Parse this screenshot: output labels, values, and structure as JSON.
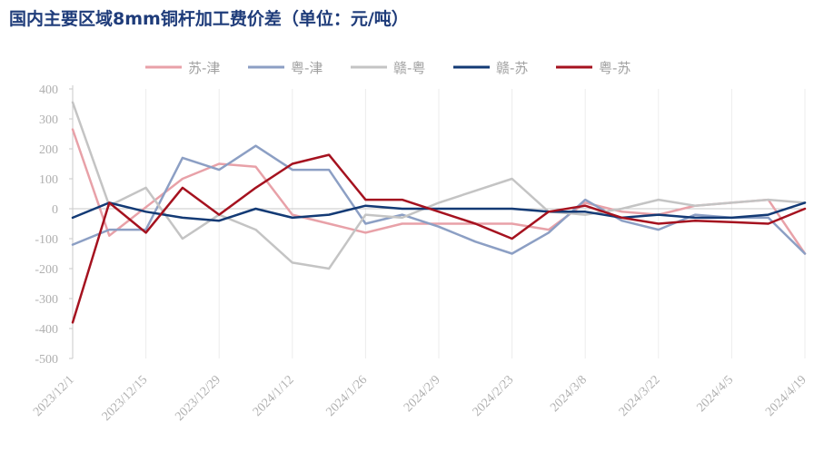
{
  "title": "国内主要区域8mm铜杆加工费价差（单位：元/吨）",
  "chart_data": {
    "type": "line",
    "title": "国内主要区域8mm铜杆加工费价差（单位：元/吨）",
    "xlabel": "",
    "ylabel": "",
    "ylim": [
      -500,
      400
    ],
    "yticks": [
      400,
      300,
      200,
      100,
      0,
      -100,
      -200,
      -300,
      -400,
      -500
    ],
    "grid": true,
    "legend_position": "top",
    "x": [
      "2023/12/1",
      "2023/12/8",
      "2023/12/15",
      "2023/12/22",
      "2023/12/29",
      "2024/1/5",
      "2024/1/12",
      "2024/1/19",
      "2024/1/26",
      "2024/2/2",
      "2024/2/9",
      "2024/2/16",
      "2024/2/23",
      "2024/3/1",
      "2024/3/8",
      "2024/3/15",
      "2024/3/22",
      "2024/3/29",
      "2024/4/5",
      "2024/4/12",
      "2024/4/19"
    ],
    "xtick_labels": [
      "2023/12/1",
      "2023/12/15",
      "2023/12/29",
      "2024/1/12",
      "2024/1/26",
      "2024/2/9",
      "2024/2/23",
      "2024/3/8",
      "2024/3/22",
      "2024/4/5",
      "2024/4/19"
    ],
    "series": [
      {
        "name": "苏-津",
        "color": "#e8a1a8",
        "width": 2.5,
        "values": [
          265,
          -90,
          5,
          100,
          150,
          140,
          -20,
          -50,
          -80,
          -50,
          -50,
          -50,
          -50,
          -70,
          20,
          -10,
          -20,
          10,
          20,
          30,
          -150
        ]
      },
      {
        "name": "粤-津",
        "color": "#8c9fc4",
        "width": 2.5,
        "values": [
          -120,
          -70,
          -70,
          170,
          130,
          210,
          130,
          130,
          -50,
          -20,
          -60,
          -110,
          -150,
          -80,
          30,
          -40,
          -70,
          -20,
          -30,
          -30,
          -150
        ]
      },
      {
        "name": "赣-粤",
        "color": "#c4c4c4",
        "width": 2.5,
        "values": [
          355,
          10,
          70,
          -100,
          -20,
          -70,
          -180,
          -200,
          -20,
          -30,
          20,
          60,
          100,
          -10,
          -20,
          0,
          30,
          10,
          20,
          30,
          20
        ]
      },
      {
        "name": "赣-苏",
        "color": "#133a75",
        "width": 2.5,
        "values": [
          -30,
          20,
          -10,
          -30,
          -40,
          0,
          -30,
          -20,
          10,
          0,
          0,
          0,
          0,
          -10,
          -10,
          -30,
          -20,
          -30,
          -30,
          -20,
          20
        ]
      },
      {
        "name": "粤-苏",
        "color": "#a5121f",
        "width": 2.5,
        "values": [
          -380,
          20,
          -80,
          70,
          -20,
          70,
          150,
          180,
          30,
          30,
          -10,
          -50,
          -100,
          -10,
          10,
          -30,
          -50,
          -40,
          -45,
          -50,
          0
        ]
      }
    ]
  }
}
